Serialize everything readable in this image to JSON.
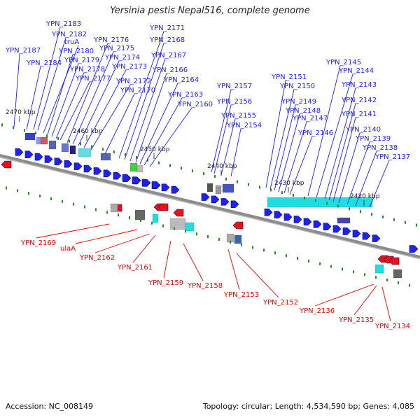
{
  "title": "Yersinia pestis Nepal516, complete genome",
  "footer": {
    "accession": "Accession: NC_008149",
    "summary": "Topology: circular; Length: 4,534,590 bp; Genes: 4,085"
  },
  "colors": {
    "forward_label": "#1a1aff",
    "reverse_label": "#e60000",
    "backbone": "#8c8c8c",
    "forward_gene": "#1e22ee",
    "reverse_gene": "#ee1111",
    "tick": "#228822",
    "cyan": "#22dddd"
  },
  "ticks": [
    "2470 kbp",
    "2460 kbp",
    "2450 kbp",
    "2440 kbp",
    "2430 kbp",
    "2420 kbp"
  ],
  "forward_labels": [
    "YPN_2187",
    "YPN_2184",
    "YPN_2183",
    "YPN_2182",
    "truA",
    "YPN_2180",
    "YPN_2179",
    "YPN_2178",
    "YPN_2177",
    "YPN_2176",
    "YPN_2175",
    "YPN_2174",
    "YPN_2173",
    "YPN_2172",
    "YPN_2171",
    "YPN_2170",
    "YPN_2168",
    "YPN_2167",
    "YPN_2166",
    "YPN_2164",
    "YPN_2163",
    "YPN_2160",
    "YPN_2157",
    "YPN_2156",
    "YPN_2155",
    "YPN_2154",
    "YPN_2151",
    "YPN_2150",
    "YPN_2149",
    "YPN_2148",
    "YPN_2147",
    "YPN_2146",
    "YPN_2145",
    "YPN_2144",
    "YPN_2143",
    "YPN_2142",
    "YPN_2141",
    "YPN_2140",
    "YPN_2139",
    "YPN_2138",
    "YPN_2137"
  ],
  "reverse_labels": [
    "YPN_2169",
    "ulaA",
    "YPN_2162",
    "YPN_2161",
    "YPN_2159",
    "YPN_2158",
    "YPN_2153",
    "YPN_2152",
    "YPN_2136",
    "YPN_2135",
    "YPN_2134"
  ]
}
